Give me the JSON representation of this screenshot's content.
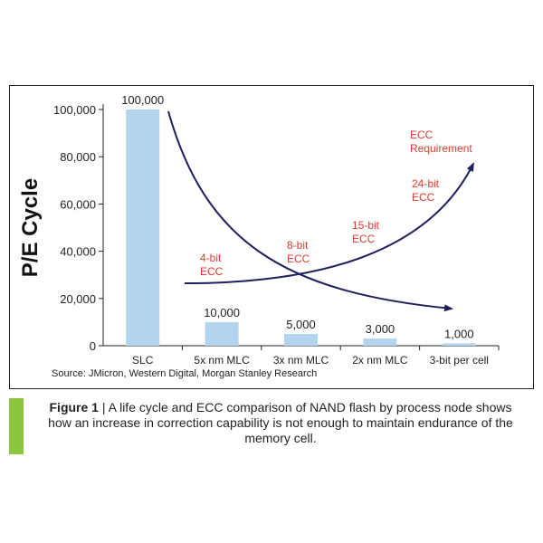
{
  "chart_data": {
    "type": "bar",
    "ylabel": "P/E Cycle",
    "ylim": [
      0,
      100000
    ],
    "yticks": [
      "0",
      "20,000",
      "40,000",
      "60,000",
      "80,000",
      "100,000"
    ],
    "categories": [
      "SLC",
      "5x nm MLC",
      "3x nm MLC",
      "2x nm MLC",
      "3-bit per cell"
    ],
    "values": [
      100000,
      10000,
      5000,
      3000,
      1000
    ],
    "value_labels": [
      "100,000",
      "10,000",
      "5,000",
      "3,000",
      "1,000"
    ],
    "annotations": {
      "ecc_labels": [
        {
          "lines": [
            "4-bit",
            "ECC"
          ]
        },
        {
          "lines": [
            "8-bit",
            "ECC"
          ]
        },
        {
          "lines": [
            "15-bit",
            "ECC"
          ]
        },
        {
          "lines": [
            "24-bit",
            "ECC"
          ]
        },
        {
          "lines": [
            "ECC",
            "Requirement"
          ]
        }
      ]
    },
    "colors": {
      "bar": "#b3d4ee",
      "annotation": "#e03a2f",
      "arrow": "#1f1f5c"
    }
  },
  "source": "Source: JMicron, Western Digital, Morgan Stanley Research",
  "caption": {
    "label": "Figure 1",
    "separator": " | ",
    "text": "A life cycle and ECC comparison of NAND flash by process node shows how an increase in correction capability is not enough to maintain endurance of the memory cell."
  }
}
